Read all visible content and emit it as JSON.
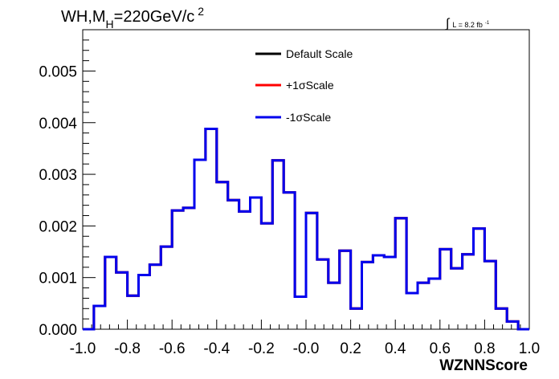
{
  "chart_data": {
    "type": "line",
    "title": {
      "main_a": "WH,M",
      "sub": "H",
      "main_b": "=220GeV/c",
      "sup": "2"
    },
    "lumi": {
      "integral": "∫",
      "text": "L = 8.2 fb",
      "sup": "-1"
    },
    "xlabel": "WZNNScore",
    "ylabel": "",
    "xlim": [
      -1.0,
      1.0
    ],
    "ylim": [
      0,
      0.0058
    ],
    "xticks": [
      "-1.0",
      "-0.8",
      "-0.6",
      "-0.4",
      "-0.2",
      "-0.0",
      "0.2",
      "0.4",
      "0.6",
      "0.8",
      "1.0"
    ],
    "yticks": [
      "0.000",
      "0.001",
      "0.002",
      "0.003",
      "0.004",
      "0.005"
    ],
    "bin_edges_start": -1.0,
    "bin_width": 0.05,
    "series": [
      {
        "name": "Default Scale",
        "color": "#000000",
        "values": [
          0.0,
          0.00045,
          0.0014,
          0.0011,
          0.00065,
          0.00105,
          0.00125,
          0.0016,
          0.0023,
          0.00235,
          0.00328,
          0.00388,
          0.00285,
          0.0025,
          0.00228,
          0.00255,
          0.00205,
          0.00327,
          0.00265,
          0.00063,
          0.00225,
          0.00135,
          0.0009,
          0.00152,
          0.0004,
          0.0013,
          0.00143,
          0.0014,
          0.00215,
          0.0007,
          0.0009,
          0.00098,
          0.00155,
          0.00118,
          0.00145,
          0.00195,
          0.00132,
          0.0004,
          0.00015,
          0.0
        ]
      },
      {
        "name": "+1σScale",
        "color": "#ff0000",
        "values": [
          0.0,
          0.00045,
          0.0014,
          0.0011,
          0.00065,
          0.00105,
          0.00125,
          0.0016,
          0.0023,
          0.00235,
          0.00328,
          0.00388,
          0.00285,
          0.0025,
          0.00228,
          0.00255,
          0.00205,
          0.00327,
          0.00265,
          0.00063,
          0.00225,
          0.00135,
          0.0009,
          0.00152,
          0.0004,
          0.0013,
          0.00143,
          0.0014,
          0.00215,
          0.0007,
          0.0009,
          0.00098,
          0.00155,
          0.00118,
          0.00145,
          0.00195,
          0.00132,
          0.0004,
          0.00015,
          0.0
        ]
      },
      {
        "name": "-1σScale",
        "color": "#0000ee",
        "values": [
          0.0,
          0.00045,
          0.0014,
          0.0011,
          0.00065,
          0.00105,
          0.00125,
          0.0016,
          0.0023,
          0.00235,
          0.00328,
          0.00388,
          0.00285,
          0.0025,
          0.00228,
          0.00255,
          0.00205,
          0.00327,
          0.00265,
          0.00063,
          0.00225,
          0.00135,
          0.0009,
          0.00152,
          0.0004,
          0.0013,
          0.00143,
          0.0014,
          0.00215,
          0.0007,
          0.0009,
          0.00098,
          0.00155,
          0.00118,
          0.00145,
          0.00195,
          0.00132,
          0.0004,
          0.00015,
          0.0
        ]
      }
    ],
    "legend_position": "top-center",
    "grid": false
  }
}
